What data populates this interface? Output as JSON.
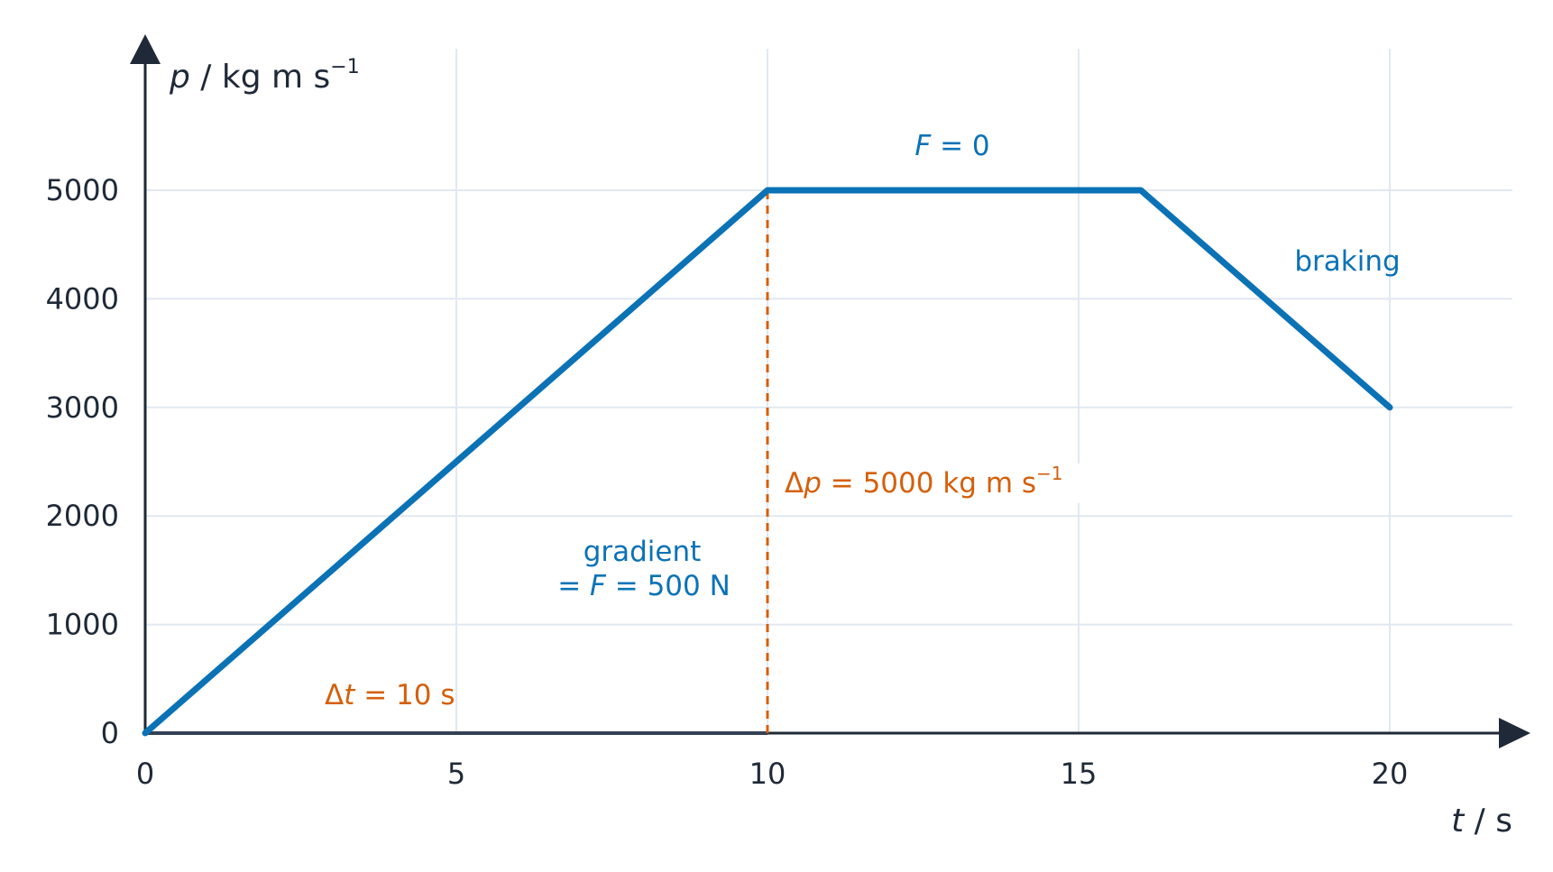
{
  "colors": {
    "series": "#0b72b5",
    "annotation": "#d4600b",
    "axis": "#1f2937",
    "grid": "#e2e8f0"
  },
  "chart_data": {
    "type": "line",
    "xlabel": {
      "var": "t",
      "unit": " / s"
    },
    "ylabel": {
      "var": "p",
      "unit": " / kg m s",
      "exp": "−1"
    },
    "xlim": [
      0,
      22
    ],
    "ylim": [
      0,
      6200
    ],
    "xticks": [
      0,
      5,
      10,
      15,
      20
    ],
    "yticks": [
      0,
      1000,
      2000,
      3000,
      4000,
      5000
    ],
    "grid": true,
    "series": [
      {
        "x": [
          0,
          10,
          16,
          20
        ],
        "y": [
          0,
          5000,
          5000,
          3000
        ]
      }
    ],
    "annotations": {
      "flat": {
        "var": "F",
        "rest": " = 0"
      },
      "braking": "braking",
      "gradient_line1": "gradient",
      "gradient_line2": {
        "pre": "= ",
        "var": "F",
        "rest": " = 500 N"
      },
      "delta_t": {
        "pre": "Δ",
        "var": "t",
        "rest": " = 10 s"
      },
      "delta_p": {
        "pre": "Δ",
        "var": "p",
        "rest": " = 5000 kg m s",
        "exp": "−1"
      }
    }
  }
}
